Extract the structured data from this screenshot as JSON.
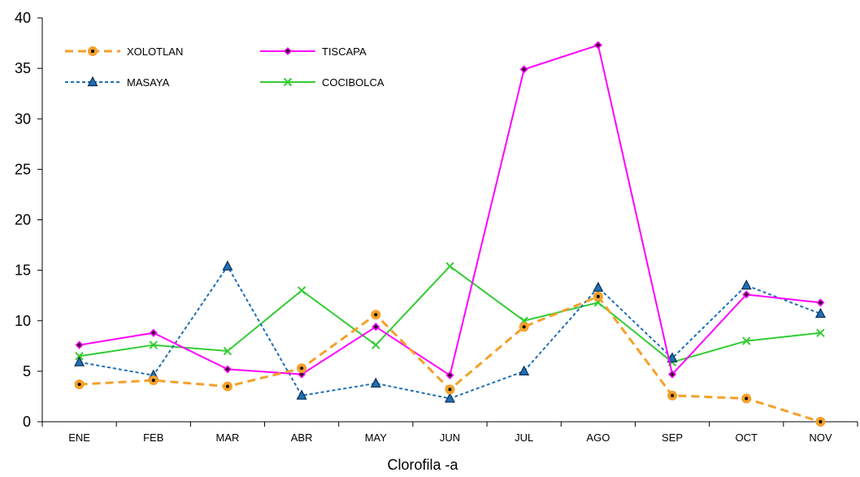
{
  "chart_data": {
    "type": "line",
    "title": "",
    "xlabel": "Clorofila -a",
    "ylabel": "",
    "ylim": [
      0,
      40
    ],
    "yticks": [
      0,
      5,
      10,
      15,
      20,
      25,
      30,
      35,
      40
    ],
    "grid": false,
    "legend_position": "top-left",
    "categories": [
      "ENE",
      "FEB",
      "MAR",
      "ABR",
      "MAY",
      "JUN",
      "JUL",
      "AGO",
      "SEP",
      "OCT",
      "NOV"
    ],
    "series": [
      {
        "name": "XOLOTLAN",
        "color": "#f5a02a",
        "line_style": "dashed",
        "marker": "circle-dot",
        "values": [
          3.7,
          4.1,
          3.5,
          5.3,
          10.6,
          3.2,
          9.4,
          12.4,
          2.6,
          2.3,
          0.0
        ]
      },
      {
        "name": "TISCAPA",
        "color": "#ff00ff",
        "line_style": "solid",
        "marker": "diamond",
        "values": [
          7.6,
          8.8,
          5.2,
          4.7,
          9.4,
          4.6,
          34.9,
          37.3,
          4.7,
          12.6,
          11.8
        ]
      },
      {
        "name": "MASAYA",
        "color": "#1f6fb5",
        "line_style": "dotted",
        "marker": "triangle",
        "values": [
          5.9,
          4.6,
          15.4,
          2.6,
          3.8,
          2.3,
          5.0,
          13.3,
          6.3,
          13.5,
          10.7
        ]
      },
      {
        "name": "COCIBOLCA",
        "color": "#33cc33",
        "line_style": "solid",
        "marker": "x",
        "values": [
          6.5,
          7.6,
          7.0,
          13.0,
          7.6,
          15.4,
          10.0,
          11.8,
          5.9,
          8.0,
          8.8
        ]
      }
    ]
  }
}
